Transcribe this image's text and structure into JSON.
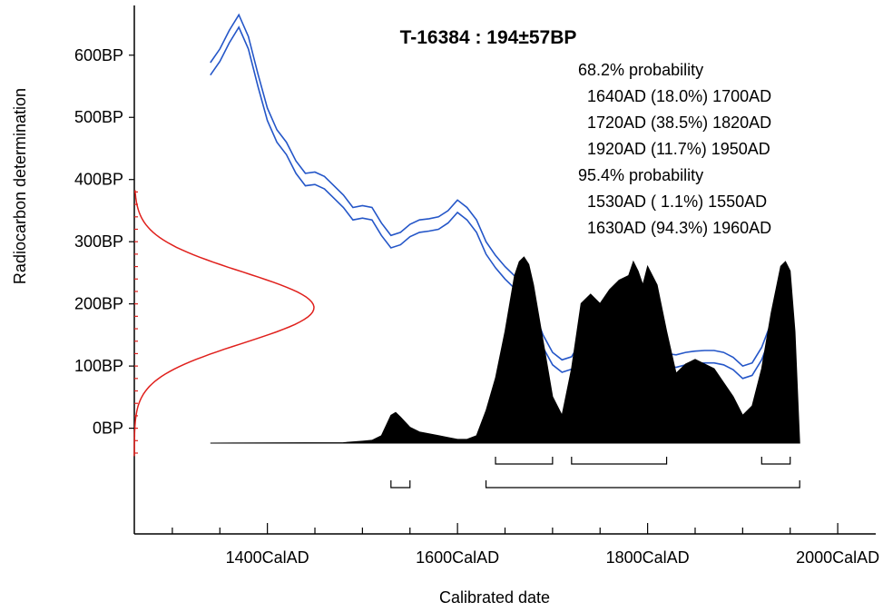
{
  "chart_data": {
    "type": "area",
    "title": "T-16384 : 194±57BP",
    "xlabel": "Calibrated date",
    "ylabel": "Radiocarbon determination",
    "x_ticks": [
      1400,
      1600,
      1800,
      2000
    ],
    "x_tick_labels": [
      "1400CalAD",
      "1600CalAD",
      "1800CalAD",
      "2000CalAD"
    ],
    "x_range": [
      1260,
      2040
    ],
    "y_ticks": [
      0,
      100,
      200,
      300,
      400,
      500,
      600
    ],
    "y_tick_labels": [
      "0BP",
      "100BP",
      "200BP",
      "300BP",
      "400BP",
      "500BP",
      "600BP"
    ],
    "y_range": [
      -170,
      680
    ],
    "grid": false,
    "colors": {
      "calibration_curve": "#2456c8",
      "radiocarbon_distribution": "#e0201c",
      "posterior": "#000000"
    },
    "probability_text": [
      "68.2% probability",
      "  1640AD (18.0%) 1700AD",
      "  1720AD (38.5%) 1820AD",
      "  1920AD (11.7%) 1950AD",
      "95.4% probability",
      "  1530AD ( 1.1%) 1550AD",
      "  1630AD (94.3%) 1960AD"
    ],
    "ranges_68": [
      [
        1640,
        1700
      ],
      [
        1720,
        1820
      ],
      [
        1920,
        1950
      ]
    ],
    "ranges_95": [
      [
        1530,
        1550
      ],
      [
        1630,
        1960
      ]
    ],
    "radiocarbon_measurement": {
      "mean_bp": 194,
      "sigma_bp": 57
    },
    "calibration_curve": {
      "x": [
        1340,
        1350,
        1360,
        1370,
        1380,
        1390,
        1400,
        1410,
        1420,
        1430,
        1440,
        1450,
        1460,
        1470,
        1480,
        1490,
        1500,
        1510,
        1520,
        1530,
        1540,
        1550,
        1560,
        1570,
        1580,
        1590,
        1600,
        1610,
        1620,
        1630,
        1640,
        1650,
        1660,
        1670,
        1680,
        1690,
        1700,
        1710,
        1720,
        1730,
        1740,
        1750,
        1760,
        1770,
        1780,
        1790,
        1800,
        1810,
        1820,
        1830,
        1840,
        1850,
        1860,
        1870,
        1880,
        1890,
        1900,
        1910,
        1920,
        1930,
        1940,
        1950,
        1958
      ],
      "y": [
        578,
        600,
        630,
        655,
        620,
        560,
        505,
        470,
        450,
        420,
        400,
        402,
        395,
        380,
        365,
        345,
        348,
        345,
        320,
        300,
        305,
        318,
        325,
        327,
        330,
        340,
        357,
        345,
        325,
        290,
        268,
        250,
        235,
        215,
        180,
        140,
        112,
        100,
        105,
        130,
        150,
        158,
        155,
        168,
        205,
        190,
        150,
        125,
        110,
        108,
        112,
        114,
        115,
        115,
        112,
        104,
        90,
        95,
        120,
        160,
        190,
        140,
        20
      ],
      "band_half_width": 10
    },
    "posterior_density": {
      "x": [
        1340,
        1480,
        1500,
        1510,
        1520,
        1530,
        1535,
        1540,
        1550,
        1560,
        1570,
        1580,
        1590,
        1600,
        1610,
        1620,
        1630,
        1640,
        1650,
        1660,
        1665,
        1670,
        1675,
        1680,
        1690,
        1700,
        1710,
        1720,
        1730,
        1740,
        1750,
        1760,
        1770,
        1780,
        1785,
        1790,
        1795,
        1800,
        1810,
        1820,
        1830,
        1840,
        1850,
        1860,
        1870,
        1880,
        1890,
        1900,
        1910,
        1920,
        1930,
        1940,
        1945,
        1950,
        1955,
        1960
      ],
      "y": [
        0,
        0.5,
        2,
        3,
        8,
        30,
        33,
        28,
        17,
        12,
        10,
        8,
        6,
        4,
        4,
        8,
        35,
        70,
        120,
        180,
        195,
        200,
        192,
        170,
        110,
        50,
        30,
        80,
        150,
        160,
        150,
        165,
        175,
        180,
        195,
        185,
        170,
        190,
        170,
        120,
        75,
        85,
        90,
        85,
        80,
        65,
        50,
        30,
        40,
        80,
        140,
        190,
        195,
        185,
        120,
        0
      ]
    }
  }
}
